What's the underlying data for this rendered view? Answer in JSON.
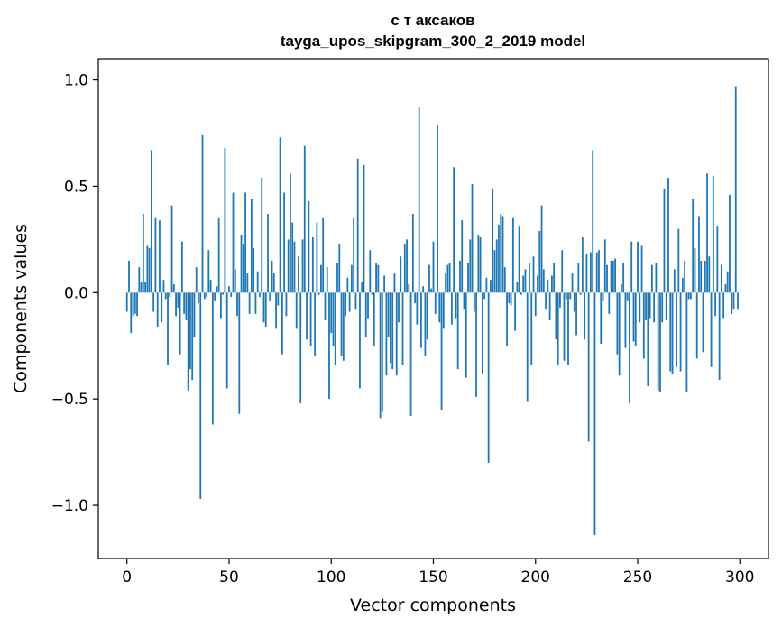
{
  "chart_data": {
    "type": "bar",
    "title": "с т аксаков",
    "subtitle": "tayga_upos_skipgram_300_2_2019 model",
    "xlabel": "Vector components",
    "ylabel": "Components values",
    "xlim": [
      -14,
      314
    ],
    "ylim": [
      -1.25,
      1.1
    ],
    "xticks": [
      0,
      50,
      100,
      150,
      200,
      250,
      300
    ],
    "yticks": [
      -1.0,
      -0.5,
      0.0,
      0.5,
      1.0
    ],
    "ytick_labels": [
      "−1.0",
      "−0.5",
      "0.0",
      "0.5",
      "1.0"
    ],
    "bar_color": "#1f77b4",
    "values": [
      -0.09,
      0.15,
      -0.19,
      -0.11,
      -0.1,
      -0.11,
      0.12,
      0.05,
      0.37,
      0.05,
      0.22,
      0.21,
      0.67,
      -0.09,
      0.35,
      -0.16,
      0.34,
      -0.14,
      0.06,
      -0.03,
      -0.34,
      -0.02,
      0.41,
      0.04,
      -0.11,
      -0.07,
      -0.29,
      0.24,
      -0.1,
      -0.13,
      -0.46,
      -0.36,
      -0.41,
      -0.21,
      0.12,
      -0.05,
      -0.97,
      0.74,
      -0.03,
      -0.02,
      0.2,
      0.06,
      -0.62,
      -0.04,
      0.03,
      0.35,
      -0.12,
      -0.01,
      0.68,
      -0.45,
      0.03,
      -0.02,
      0.47,
      0.11,
      -0.11,
      -0.57,
      0.27,
      0.23,
      0.47,
      0.09,
      -0.1,
      0.44,
      0.21,
      -0.1,
      0.1,
      -0.02,
      0.54,
      -0.14,
      -0.16,
      0.37,
      -0.04,
      0.15,
      0.09,
      -0.17,
      -0.06,
      0.73,
      -0.29,
      0.47,
      -0.11,
      0.25,
      0.56,
      0.33,
      0.24,
      -0.17,
      0.17,
      -0.52,
      0.25,
      0.69,
      -0.22,
      0.43,
      -0.25,
      0.26,
      -0.3,
      0.33,
      -0.01,
      0.13,
      0.35,
      -0.13,
      0.12,
      -0.5,
      -0.19,
      -0.25,
      -0.34,
      0.14,
      0.23,
      -0.3,
      -0.32,
      -0.11,
      0.07,
      -0.09,
      0.13,
      0.35,
      -0.08,
      0.63,
      -0.45,
      0.05,
      0.6,
      -0.21,
      -0.12,
      0.2,
      -0.01,
      -0.25,
      0.14,
      0.13,
      -0.59,
      -0.56,
      0.08,
      -0.39,
      -0.21,
      -0.33,
      -0.36,
      0.09,
      -0.39,
      -0.14,
      0.17,
      -0.34,
      0.23,
      0.25,
      0.04,
      -0.58,
      0.37,
      -0.05,
      -0.15,
      0.87,
      -0.26,
      0.03,
      -0.3,
      -0.22,
      0.13,
      0.02,
      0.24,
      -0.1,
      0.79,
      -0.14,
      -0.55,
      -0.17,
      0.09,
      0.13,
      0.14,
      -0.15,
      0.59,
      -0.12,
      -0.36,
      0.15,
      0.34,
      -0.08,
      -0.4,
      0.14,
      0.25,
      0.51,
      -0.09,
      -0.49,
      0.27,
      0.26,
      -0.38,
      -0.03,
      0.07,
      -0.8,
      0.06,
      0.49,
      0.2,
      0.25,
      0.32,
      0.37,
      0.36,
      0.12,
      -0.25,
      -0.05,
      -0.06,
      0.35,
      -0.18,
      0.05,
      0.31,
      -0.01,
      0.08,
      0.11,
      -0.51,
      0.14,
      -0.34,
      0.17,
      -0.11,
      0.08,
      0.29,
      0.41,
      0.11,
      -0.08,
      0.06,
      -0.13,
      0.08,
      0.14,
      -0.22,
      -0.34,
      -0.07,
      0.2,
      -0.32,
      -0.03,
      -0.34,
      -0.03,
      0.09,
      -0.09,
      -0.2,
      0.14,
      -0.01,
      0.26,
      -0.22,
      0.18,
      -0.7,
      0.19,
      0.67,
      -1.14,
      0.19,
      0.2,
      -0.24,
      -0.04,
      0.25,
      0.13,
      -0.1,
      0.15,
      0.15,
      0.16,
      -0.29,
      -0.39,
      0.04,
      0.14,
      -0.26,
      -0.04,
      -0.52,
      0.24,
      -0.23,
      -0.25,
      0.24,
      -0.14,
      0.22,
      -0.31,
      -0.13,
      -0.44,
      -0.12,
      0.13,
      -0.14,
      0.14,
      -0.46,
      -0.47,
      -0.14,
      0.49,
      -0.13,
      0.54,
      -0.37,
      -0.38,
      0.11,
      -0.35,
      0.3,
      -0.37,
      0.07,
      0.15,
      -0.47,
      -0.03,
      -0.03,
      0.44,
      0.21,
      -0.31,
      0.36,
      0.15,
      -0.28,
      0.15,
      0.56,
      0.17,
      -0.35,
      0.55,
      -0.11,
      0.31,
      -0.41,
      0.13,
      -0.12,
      0.04,
      0.1,
      0.46,
      -0.1,
      -0.08,
      0.97,
      -0.08
    ]
  }
}
